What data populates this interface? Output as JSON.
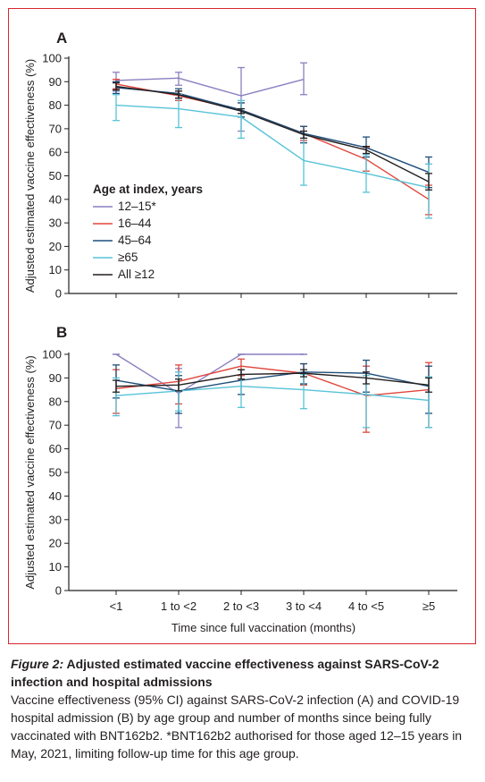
{
  "chart_data": [
    {
      "type": "line",
      "panel_label": "A",
      "ylabel": "Adjusted estimated vaccine effectiveness (%)",
      "ylim": [
        0,
        100
      ],
      "yticks": [
        "0",
        "10",
        "20",
        "30",
        "40",
        "50",
        "60",
        "70",
        "80",
        "90",
        "100"
      ],
      "categories": [
        "<1",
        "1 to <2",
        "2 to <3",
        "3 to <4",
        "4 to <5",
        "≥5"
      ],
      "legend": {
        "title": "Age at index, years",
        "placement": "lower-left",
        "entries": [
          "12–15*",
          "16–44",
          "45–64",
          "≥65",
          "All ≥12"
        ]
      },
      "series": [
        {
          "name": "12–15*",
          "color": "#8b7fc0",
          "values": [
            90.5,
            91.5,
            84,
            91,
            null,
            null
          ],
          "lower": [
            86,
            88.5,
            69,
            84.5,
            null,
            null
          ],
          "upper": [
            94,
            94,
            96,
            98,
            null,
            null
          ]
        },
        {
          "name": "16–44",
          "color": "#e0463c",
          "values": [
            89,
            84,
            78,
            68,
            57,
            40
          ],
          "lower": [
            87,
            82,
            75,
            65,
            52,
            33.5
          ],
          "upper": [
            91,
            86,
            81,
            71,
            62,
            46
          ]
        },
        {
          "name": "45–64",
          "color": "#1f4e7a",
          "values": [
            87.5,
            85,
            78,
            68,
            62,
            51.5
          ],
          "lower": [
            85,
            83,
            75,
            64,
            58,
            45
          ],
          "upper": [
            90,
            87,
            81,
            71,
            66.5,
            58
          ]
        },
        {
          "name": "≥65",
          "color": "#56c3d8",
          "values": [
            80,
            78.5,
            75,
            56.5,
            51,
            45
          ],
          "lower": [
            73.5,
            70.5,
            66,
            46,
            43,
            32
          ],
          "upper": [
            84.5,
            84.5,
            82,
            66,
            59,
            55
          ]
        },
        {
          "name": "All ≥12",
          "color": "#231f20",
          "values": [
            88,
            84.5,
            77.5,
            67.5,
            61,
            47.5
          ],
          "lower": [
            86.5,
            83,
            76.5,
            66,
            59.5,
            44
          ],
          "upper": [
            89.5,
            86,
            78.5,
            69,
            62.5,
            51
          ]
        }
      ]
    },
    {
      "type": "line",
      "panel_label": "B",
      "xlabel": "Time since full vaccination (months)",
      "ylabel": "Adjusted estimated vaccine effectiveness (%)",
      "ylim": [
        0,
        100
      ],
      "yticks": [
        "0",
        "10",
        "20",
        "30",
        "40",
        "50",
        "60",
        "70",
        "80",
        "90",
        "100"
      ],
      "categories": [
        "<1",
        "1 to <2",
        "2 to <3",
        "3 to <4",
        "4 to <5",
        "≥5"
      ],
      "series": [
        {
          "name": "12–15*",
          "color": "#8b7fc0",
          "values": [
            100,
            83.5,
            100,
            100,
            null,
            null
          ],
          "lower": [
            100,
            69,
            100,
            100,
            null,
            null
          ],
          "upper": [
            100,
            94,
            100,
            100,
            null,
            null
          ]
        },
        {
          "name": "16–44",
          "color": "#e0463c",
          "values": [
            85.5,
            88.5,
            95,
            92,
            82.5,
            85
          ],
          "lower": [
            75,
            79,
            91,
            87,
            67,
            69
          ],
          "upper": [
            93.5,
            95.5,
            98,
            96,
            95,
            96.5
          ]
        },
        {
          "name": "45–64",
          "color": "#1f4e7a",
          "values": [
            89,
            84.5,
            89,
            92.5,
            92,
            86.5
          ],
          "lower": [
            81.5,
            75,
            83,
            87.5,
            84,
            75
          ],
          "upper": [
            95.5,
            91,
            93.5,
            96,
            97.5,
            95
          ]
        },
        {
          "name": "≥65",
          "color": "#56c3d8",
          "values": [
            82.5,
            84.5,
            86.5,
            85,
            83,
            80.5
          ],
          "lower": [
            74,
            76,
            77.5,
            77,
            69,
            69
          ],
          "upper": [
            90,
            92.5,
            93.5,
            91.5,
            91,
            90.5
          ]
        },
        {
          "name": "All ≥12",
          "color": "#231f20",
          "values": [
            86.5,
            87,
            91.5,
            92,
            90,
            87
          ],
          "lower": [
            84,
            84.5,
            89.5,
            90.5,
            87.5,
            84
          ],
          "upper": [
            89,
            89.5,
            93.5,
            93.5,
            92.5,
            90
          ]
        }
      ]
    }
  ],
  "caption": {
    "figure_label": "Figure 2:",
    "title": " Adjusted estimated vaccine effectiveness against SARS-CoV-2 infection and hospital admissions",
    "body": "Vaccine effectiveness (95% CI) against SARS-CoV-2 infection (A) and COVID-19 hospital admission (B) by age group and number of months since being fully vaccinated with BNT162b2. *BNT162b2 authorised for those aged 12–15 years in May, 2021, limiting follow-up time for this age group."
  }
}
